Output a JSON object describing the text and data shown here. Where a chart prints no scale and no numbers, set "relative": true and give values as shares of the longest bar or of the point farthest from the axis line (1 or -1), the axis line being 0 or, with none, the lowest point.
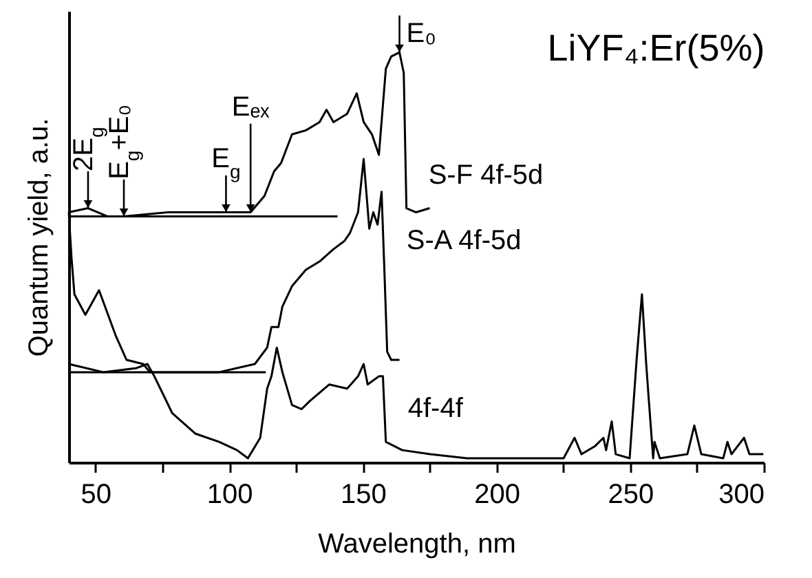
{
  "chart_data": {
    "type": "line",
    "title": "LiYF₄:Er(5%)",
    "xlabel": "Wavelength, nm",
    "ylabel": "Quantum yield, a.u.",
    "relative": true,
    "xlim": [
      40,
      300
    ],
    "xticks": [
      50,
      {
        "value": 75,
        "label": null
      },
      100,
      {
        "value": 125,
        "label": null
      },
      150,
      {
        "value": 175,
        "label": null
      },
      200,
      {
        "value": 225,
        "label": null
      },
      250,
      {
        "value": 275,
        "label": null
      },
      300
    ],
    "grid": false,
    "legend": false,
    "line_style": "solid",
    "series": [
      {
        "name": "S-F 4f-5d",
        "color": "#000000",
        "x": [
          40,
          47.2,
          54.4,
          60.6,
          77.1,
          98.8,
          108,
          113.2,
          116.8,
          119.4,
          123.5,
          128.7,
          133.8,
          136.4,
          139,
          144.1,
          147.7,
          150.3,
          153.4,
          156,
          158.6,
          160.6,
          163.7,
          165.3,
          166.3,
          169.9,
          175
        ],
        "values": [
          0.61,
          0.62,
          0.6,
          0.6,
          0.61,
          0.61,
          0.61,
          0.65,
          0.71,
          0.73,
          0.8,
          0.81,
          0.83,
          0.86,
          0.83,
          0.85,
          0.9,
          0.83,
          0.8,
          0.75,
          0.96,
          0.99,
          1.0,
          0.95,
          0.62,
          0.61,
          0.62
        ]
      },
      {
        "name": "S-A 4f-5d",
        "color": "#000000",
        "x": [
          40,
          41,
          42.1,
          46.2,
          51.3,
          57.5,
          61.6,
          67.8,
          70.4,
          78.7,
          96.2,
          109.6,
          114.2,
          115.8,
          118.4,
          119.9,
          123.5,
          128.7,
          133.8,
          139,
          143.1,
          145.2,
          148.2,
          150.3,
          152.4,
          153.9,
          155.5,
          157,
          158.1,
          159.1,
          160.6,
          163.7
        ],
        "values": [
          0.61,
          0.5,
          0.41,
          0.36,
          0.42,
          0.31,
          0.25,
          0.24,
          0.22,
          0.22,
          0.22,
          0.24,
          0.28,
          0.33,
          0.33,
          0.38,
          0.43,
          0.47,
          0.49,
          0.52,
          0.54,
          0.56,
          0.61,
          0.74,
          0.57,
          0.61,
          0.58,
          0.66,
          0.46,
          0.27,
          0.25,
          0.25
        ]
      },
      {
        "name": "4f-4f",
        "color": "#000000",
        "x": [
          40,
          52.9,
          65.3,
          69.4,
          72,
          78.7,
          87.4,
          96.2,
          102.9,
          107,
          111.6,
          114.2,
          115.8,
          117.8,
          119.9,
          123.5,
          127.1,
          130.2,
          137.4,
          144.1,
          148.2,
          150.3,
          151.8,
          156,
          157.5,
          158.6,
          164.7,
          175.1,
          189,
          225.1,
          229.2,
          231.8,
          236.9,
          240,
          241,
          243.1,
          244.6,
          249.8,
          252.4,
          254.4,
          256,
          257,
          258.6,
          259.1,
          261.1,
          271.4,
          274,
          276.6,
          284.8,
          286.4,
          287.9,
          292.6,
          294.6,
          299.8
        ],
        "values": [
          0.24,
          0.22,
          0.23,
          0.24,
          0.21,
          0.12,
          0.07,
          0.05,
          0.03,
          0.01,
          0.06,
          0.18,
          0.21,
          0.28,
          0.22,
          0.14,
          0.13,
          0.15,
          0.19,
          0.18,
          0.21,
          0.24,
          0.19,
          0.21,
          0.21,
          0.05,
          0.03,
          0.02,
          0.01,
          0.01,
          0.06,
          0.02,
          0.04,
          0.06,
          0.03,
          0.1,
          0.02,
          0.01,
          0.25,
          0.41,
          0.24,
          0.15,
          0.01,
          0.05,
          0.01,
          0.02,
          0.09,
          0.02,
          0.01,
          0.05,
          0.02,
          0.06,
          0.02,
          0.02
        ]
      },
      {
        "color": "#000000",
        "x": [
          40,
          140.5
        ],
        "values": [
          0.6,
          0.6
        ]
      },
      {
        "color": "#000000",
        "x": [
          40,
          113.7
        ],
        "values": [
          0.22,
          0.22
        ]
      }
    ],
    "annotations": [
      {
        "text": "2E$_{g}$",
        "x": 47.2,
        "y": 0.62
      },
      {
        "text": "E$_{g}$+E₀",
        "x": 60.6,
        "y": 0.6
      },
      {
        "text": "E$_{g}$",
        "x": 98.8,
        "y": 0.61
      },
      {
        "text": "Eₑₓ",
        "x": 108,
        "y": 0.61
      },
      {
        "text": "E₀",
        "x": 163.7,
        "y": 1.0
      }
    ]
  }
}
